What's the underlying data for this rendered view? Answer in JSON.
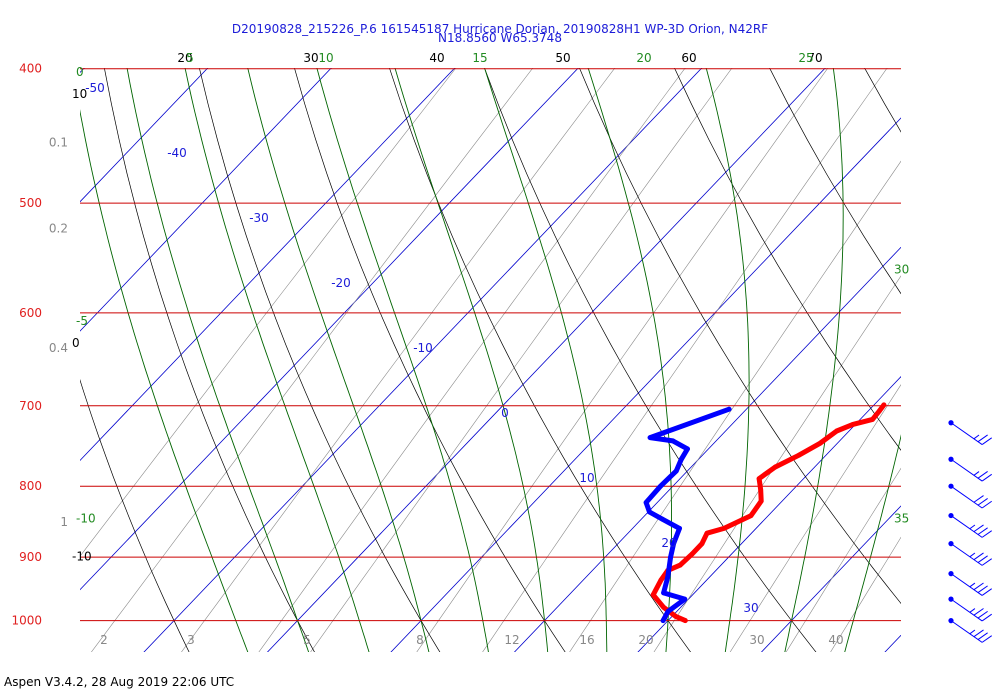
{
  "header": {
    "title_line1": "D20190828_215226_P.6 161545187 Hurricane Dorian, 20190828H1 WP-3D Orion, N42RF",
    "title_line2": "N18.8560 W65.3748"
  },
  "footer": {
    "text": "Aspen V3.4.2, 28 Aug 2019  22:06 UTC"
  },
  "colors": {
    "temperature": "#ff0000",
    "dewpoint": "#0000ff",
    "isobar": "#cc0000",
    "isotherm": "#0000cc",
    "dry_adiabat": "#000000",
    "moist_adiabat": "#006400",
    "mixing_ratio": "#8a8a8a",
    "wind_barb": "#0000ff"
  },
  "chart_data": {
    "type": "skew-t",
    "pressure_levels": [
      {
        "value": 400,
        "label": "400"
      },
      {
        "value": 500,
        "label": "500"
      },
      {
        "value": 600,
        "label": "600"
      },
      {
        "value": 700,
        "label": "700"
      },
      {
        "value": 800,
        "label": "800"
      },
      {
        "value": 900,
        "label": "900"
      },
      {
        "value": 1000,
        "label": "1000"
      }
    ],
    "plim": [
      400,
      1040
    ],
    "top_temp_labels": [
      "20",
      "30",
      "40",
      "50",
      "60",
      "70"
    ],
    "isotherm_labels": [
      {
        "label": "-50",
        "t": -50
      },
      {
        "label": "-40",
        "t": -40
      },
      {
        "label": "-30",
        "t": -30
      },
      {
        "label": "-20",
        "t": -20
      },
      {
        "label": "-10",
        "t": -10
      },
      {
        "label": "0",
        "t": 0
      },
      {
        "label": "10",
        "t": 10
      },
      {
        "label": "20",
        "t": 20
      },
      {
        "label": "30",
        "t": 30
      }
    ],
    "theta_left_labels": [
      {
        "label": "10",
        "p": 420
      },
      {
        "label": "0",
        "p": 635
      },
      {
        "label": "-10",
        "p": 905
      }
    ],
    "mixing_ratio_left_labels": [
      {
        "label": "0.1",
        "p": 455
      },
      {
        "label": "0.2",
        "p": 525
      },
      {
        "label": "0.4",
        "p": 640
      },
      {
        "label": "1",
        "p": 855
      }
    ],
    "mixing_ratio_bottom_labels": [
      "2",
      "3",
      "5",
      "8",
      "12",
      "16",
      "20",
      "30",
      "40"
    ],
    "moist_adiabat_labels": [
      {
        "label": "0",
        "pos": "left",
        "p": 405
      },
      {
        "label": "-5",
        "pos": "left",
        "p": 612
      },
      {
        "label": "-10",
        "pos": "left",
        "p": 850
      },
      {
        "label": "5",
        "pos": "top"
      },
      {
        "label": "10",
        "pos": "top"
      },
      {
        "label": "15",
        "pos": "top"
      },
      {
        "label": "20",
        "pos": "top"
      },
      {
        "label": "25",
        "pos": "top"
      },
      {
        "label": "30",
        "pos": "right",
        "p": 562
      },
      {
        "label": "35",
        "pos": "right",
        "p": 850
      }
    ],
    "temperature": [
      {
        "p": 699,
        "t": 10.8
      },
      {
        "p": 706,
        "t": 10.9
      },
      {
        "p": 716,
        "t": 11.0
      },
      {
        "p": 722,
        "t": 9.8
      },
      {
        "p": 730,
        "t": 9.0
      },
      {
        "p": 745,
        "t": 8.6
      },
      {
        "p": 760,
        "t": 7.8
      },
      {
        "p": 775,
        "t": 6.8
      },
      {
        "p": 790,
        "t": 6.4
      },
      {
        "p": 805,
        "t": 7.4
      },
      {
        "p": 820,
        "t": 8.3
      },
      {
        "p": 840,
        "t": 8.6
      },
      {
        "p": 858,
        "t": 7.4
      },
      {
        "p": 865,
        "t": 6.4
      },
      {
        "p": 880,
        "t": 6.8
      },
      {
        "p": 895,
        "t": 6.8
      },
      {
        "p": 912,
        "t": 6.7
      },
      {
        "p": 920,
        "t": 6.1
      },
      {
        "p": 935,
        "t": 6.3
      },
      {
        "p": 958,
        "t": 6.8
      },
      {
        "p": 978,
        "t": 8.6
      },
      {
        "p": 993,
        "t": 10.3
      },
      {
        "p": 1000,
        "t": 11.4
      }
    ],
    "dewpoint": [
      {
        "p": 704,
        "t": -1.4
      },
      {
        "p": 738,
        "t": -5.6
      },
      {
        "p": 742,
        "t": -3.5
      },
      {
        "p": 752,
        "t": -1.7
      },
      {
        "p": 765,
        "t": -1.4
      },
      {
        "p": 780,
        "t": -0.9
      },
      {
        "p": 800,
        "t": -1.0
      },
      {
        "p": 822,
        "t": -0.9
      },
      {
        "p": 835,
        "t": 0.1
      },
      {
        "p": 845,
        "t": 1.7
      },
      {
        "p": 858,
        "t": 3.8
      },
      {
        "p": 880,
        "t": 4.5
      },
      {
        "p": 900,
        "t": 5.3
      },
      {
        "p": 930,
        "t": 6.6
      },
      {
        "p": 955,
        "t": 7.5
      },
      {
        "p": 965,
        "t": 9.7
      },
      {
        "p": 985,
        "t": 9.3
      },
      {
        "p": 1000,
        "t": 9.6
      }
    ],
    "wind_barbs": [
      {
        "p": 720,
        "speed_kt": 25
      },
      {
        "p": 765,
        "speed_kt": 25
      },
      {
        "p": 800,
        "speed_kt": 30
      },
      {
        "p": 840,
        "speed_kt": 35
      },
      {
        "p": 880,
        "speed_kt": 35
      },
      {
        "p": 925,
        "speed_kt": 35
      },
      {
        "p": 965,
        "speed_kt": 35
      },
      {
        "p": 1000,
        "speed_kt": 35
      }
    ]
  }
}
